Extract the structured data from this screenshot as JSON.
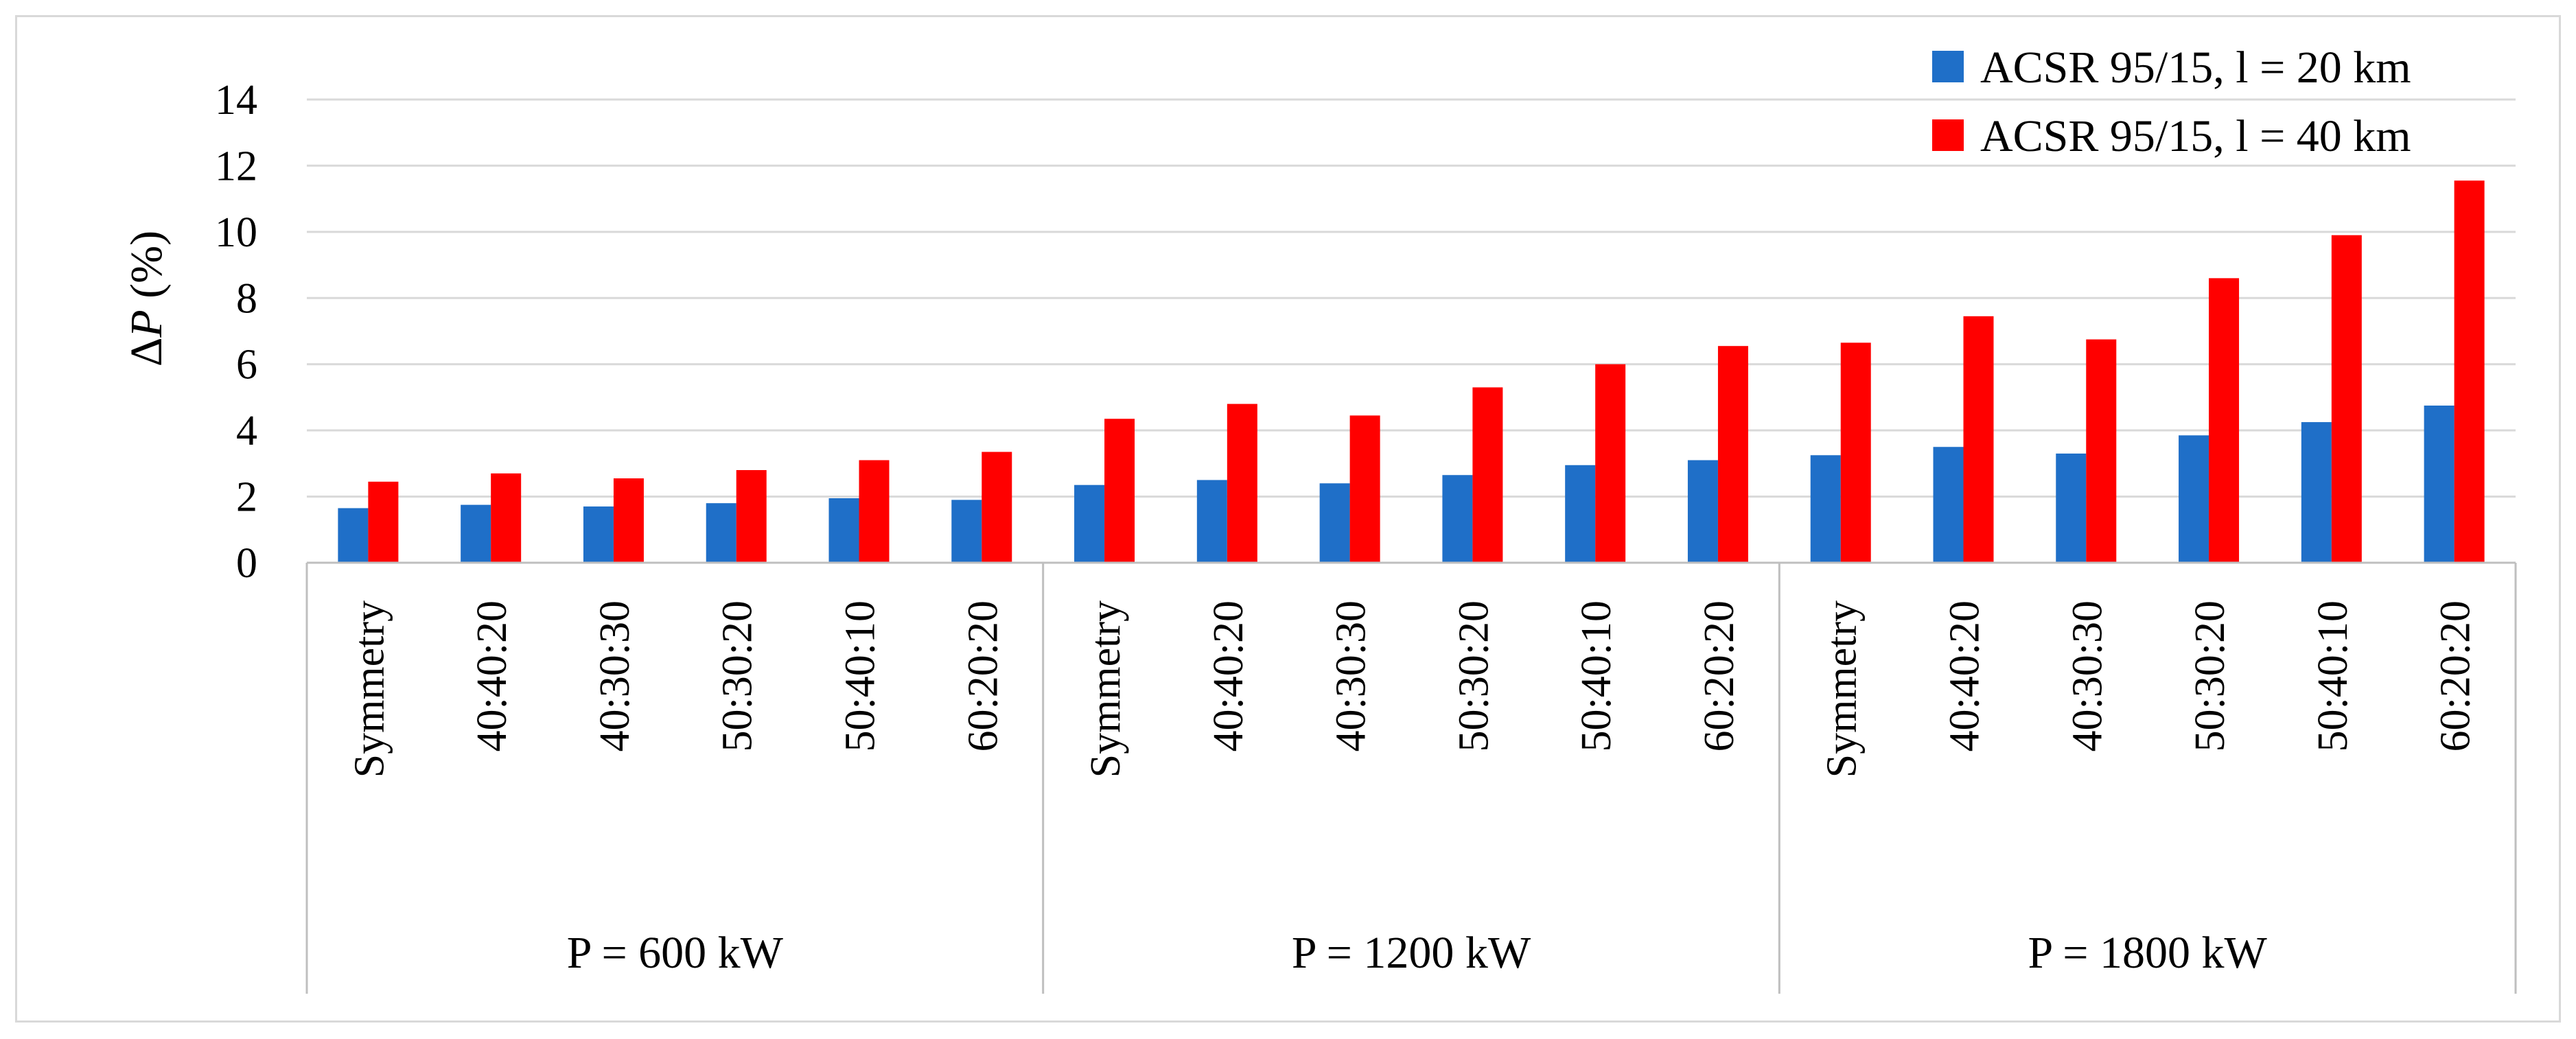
{
  "chart_data": {
    "type": "bar",
    "ylabel_prefix": "Δ",
    "ylabel_var": "P",
    "ylabel_suffix": " (%)",
    "ylim": [
      0,
      14
    ],
    "yticks": [
      0,
      2,
      4,
      6,
      8,
      10,
      12,
      14
    ],
    "grid": true,
    "legend_position": "top-right",
    "groups": [
      {
        "label": "P = 600 kW",
        "categories": [
          "Symmetry",
          "40:40:20",
          "40:30:30",
          "50:30:20",
          "50:40:10",
          "60:20:20"
        ]
      },
      {
        "label": "P = 1200 kW",
        "categories": [
          "Symmetry",
          "40:40:20",
          "40:30:30",
          "50:30:20",
          "50:40:10",
          "60:20:20"
        ]
      },
      {
        "label": "P = 1800 kW",
        "categories": [
          "Symmetry",
          "40:40:20",
          "40:30:30",
          "50:30:20",
          "50:40:10",
          "60:20:20"
        ]
      }
    ],
    "series": [
      {
        "name": "ACSR 95/15, l = 20 km",
        "color": "#1f6fc8",
        "values": [
          1.65,
          1.75,
          1.7,
          1.8,
          1.95,
          1.9,
          2.35,
          2.5,
          2.4,
          2.65,
          2.95,
          3.1,
          3.25,
          3.5,
          3.3,
          3.85,
          4.25,
          4.75
        ]
      },
      {
        "name": "ACSR 95/15, l = 40 km",
        "color": "#ff0000",
        "values": [
          2.45,
          2.7,
          2.55,
          2.8,
          3.1,
          3.35,
          4.35,
          4.8,
          4.45,
          5.3,
          6.0,
          6.55,
          6.65,
          7.45,
          6.75,
          8.6,
          9.9,
          11.55
        ]
      }
    ]
  }
}
